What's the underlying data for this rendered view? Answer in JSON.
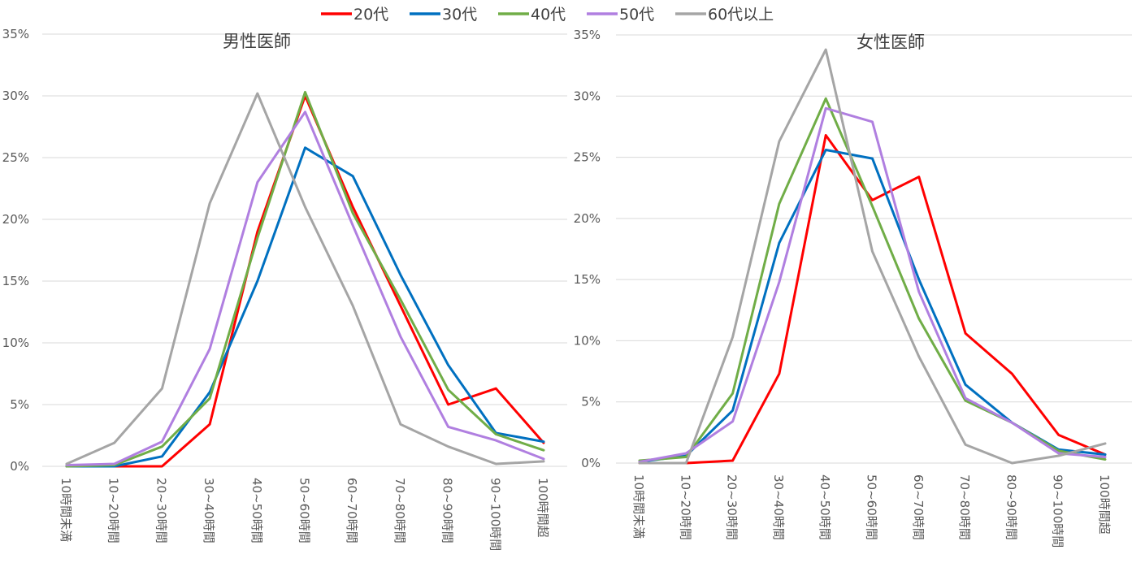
{
  "legend": [
    {
      "name": "20代",
      "color": "#ff0000"
    },
    {
      "name": "30代",
      "color": "#0070c0"
    },
    {
      "name": "40代",
      "color": "#70ad47"
    },
    {
      "name": "50代",
      "color": "#b07fe0"
    },
    {
      "name": "60代以上",
      "color": "#a5a5a5"
    }
  ],
  "chart_data": [
    {
      "type": "line",
      "title": "男性医師",
      "categories": [
        "10時間未満",
        "10~20時間",
        "20~30時間",
        "30~40時間",
        "40~50時間",
        "50~60時間",
        "60~70時間",
        "70~80時間",
        "80~90時間",
        "90~100時間",
        "100時間超"
      ],
      "y_ticks": [
        "0%",
        "5%",
        "10%",
        "15%",
        "20%",
        "25%",
        "30%",
        "35%"
      ],
      "ylim": [
        0,
        35
      ],
      "series": [
        {
          "name": "20代",
          "color": "#ff0000",
          "values": [
            0,
            0,
            0,
            3.4,
            19,
            30,
            21,
            13,
            5,
            6.3,
            1.9
          ]
        },
        {
          "name": "30代",
          "color": "#0070c0",
          "values": [
            0,
            0,
            0.8,
            6,
            15,
            25.8,
            23.5,
            15.5,
            8.2,
            2.7,
            2
          ]
        },
        {
          "name": "40代",
          "color": "#70ad47",
          "values": [
            0,
            0.1,
            1.6,
            5.5,
            18.5,
            30.3,
            20.5,
            13.5,
            6.2,
            2.6,
            1.3
          ]
        },
        {
          "name": "50代",
          "color": "#b07fe0",
          "values": [
            0.1,
            0.2,
            2,
            9.5,
            23,
            28.7,
            19.5,
            10.5,
            3.2,
            2.1,
            0.6
          ]
        },
        {
          "name": "60代以上",
          "color": "#a5a5a5",
          "values": [
            0.2,
            1.9,
            6.3,
            21.3,
            30.2,
            21,
            13,
            3.4,
            1.6,
            0.2,
            0.4
          ]
        }
      ]
    },
    {
      "type": "line",
      "title": "女性医師",
      "categories": [
        "10時間未満",
        "10~20時間",
        "20~30時間",
        "30~40時間",
        "40~50時間",
        "50~60時間",
        "60~70時間",
        "70~80時間",
        "80~90時間",
        "90~100時間",
        "100時間超"
      ],
      "y_ticks": [
        "0%",
        "5%",
        "10%",
        "15%",
        "20%",
        "25%",
        "30%",
        "35%"
      ],
      "ylim": [
        0,
        35
      ],
      "series": [
        {
          "name": "20代",
          "color": "#ff0000",
          "values": [
            0,
            0,
            0.2,
            7.3,
            26.8,
            21.5,
            23.4,
            10.6,
            7.3,
            2.3,
            0.7
          ]
        },
        {
          "name": "30代",
          "color": "#0070c0",
          "values": [
            0.1,
            0.6,
            4.3,
            18,
            25.6,
            24.9,
            15,
            6.4,
            3.3,
            1.1,
            0.7
          ]
        },
        {
          "name": "40代",
          "color": "#70ad47",
          "values": [
            0.2,
            0.5,
            5.7,
            21.2,
            29.8,
            21,
            11.8,
            5.1,
            3.3,
            1,
            0.3
          ]
        },
        {
          "name": "50代",
          "color": "#b07fe0",
          "values": [
            0.1,
            0.8,
            3.4,
            14.8,
            29,
            27.9,
            14,
            5.3,
            3.3,
            0.8,
            0.5
          ]
        },
        {
          "name": "60代以上",
          "color": "#a5a5a5",
          "values": [
            0,
            0,
            10.3,
            26.3,
            33.8,
            17.3,
            8.7,
            1.5,
            0,
            0.6,
            1.6
          ]
        }
      ]
    }
  ]
}
